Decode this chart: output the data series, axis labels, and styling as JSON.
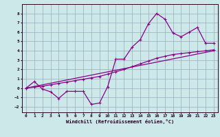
{
  "xlabel": "Windchill (Refroidissement éolien,°C)",
  "bg_color": "#cce8e8",
  "line_color": "#880088",
  "grid_color": "#99aabb",
  "xlim": [
    -0.5,
    23.5
  ],
  "ylim": [
    -2.6,
    9.0
  ],
  "yticks": [
    -2,
    -1,
    0,
    1,
    2,
    3,
    4,
    5,
    6,
    7,
    8
  ],
  "xticks": [
    0,
    1,
    2,
    3,
    4,
    5,
    6,
    7,
    8,
    9,
    10,
    11,
    12,
    13,
    14,
    15,
    16,
    17,
    18,
    19,
    20,
    21,
    22,
    23
  ],
  "series1_x": [
    0,
    1,
    2,
    3,
    4,
    5,
    6,
    7,
    8,
    9,
    10,
    11,
    12,
    13,
    14,
    15,
    16,
    17,
    18,
    19,
    20,
    21,
    22,
    23
  ],
  "series1_y": [
    0.0,
    0.7,
    -0.1,
    -0.4,
    -1.1,
    -0.35,
    -0.35,
    -0.35,
    -1.75,
    -1.6,
    0.15,
    3.1,
    3.1,
    4.4,
    5.2,
    6.9,
    8.0,
    7.4,
    5.9,
    5.5,
    6.0,
    6.5,
    4.8,
    4.8
  ],
  "series2_x": [
    0,
    1,
    2,
    3,
    4,
    5,
    6,
    7,
    8,
    9,
    10,
    11,
    12,
    13,
    14,
    15,
    16,
    17,
    18,
    19,
    20,
    21,
    22,
    23
  ],
  "series2_y": [
    0.0,
    0.1,
    0.2,
    0.35,
    0.5,
    0.65,
    0.8,
    0.95,
    1.1,
    1.25,
    1.5,
    1.75,
    2.0,
    2.3,
    2.6,
    2.9,
    3.2,
    3.4,
    3.6,
    3.7,
    3.8,
    3.9,
    4.0,
    4.1
  ],
  "series3_x": [
    0,
    23
  ],
  "series3_y": [
    0.0,
    4.0
  ]
}
